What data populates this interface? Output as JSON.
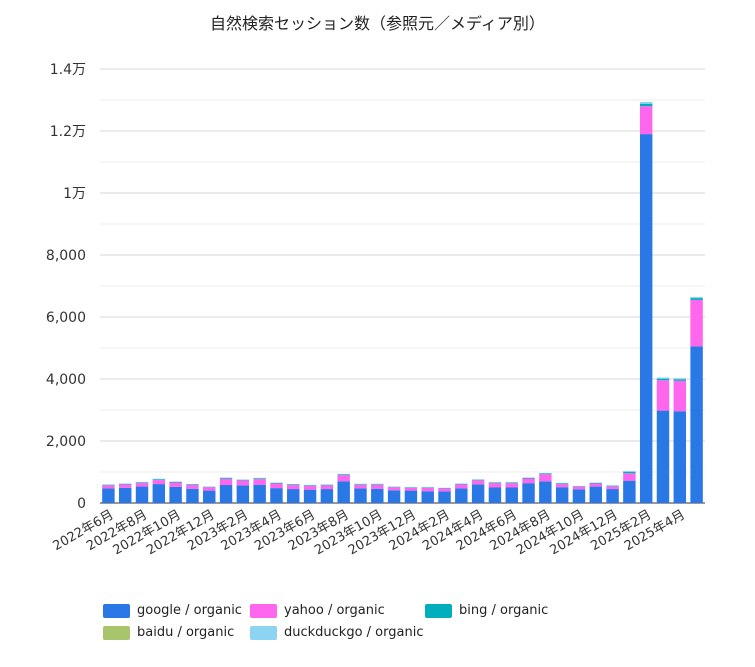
{
  "chart_data": {
    "type": "bar",
    "stacked": true,
    "title": "自然検索セッション数（参照元／メディア別）",
    "xlabel": "",
    "ylabel": "",
    "ylim": [
      0,
      14000
    ],
    "yticks": [
      {
        "value": 0,
        "label": "0"
      },
      {
        "value": 2000,
        "label": "2,000"
      },
      {
        "value": 4000,
        "label": "4,000"
      },
      {
        "value": 6000,
        "label": "6,000"
      },
      {
        "value": 8000,
        "label": "8,000"
      },
      {
        "value": 10000,
        "label": "1万"
      },
      {
        "value": 12000,
        "label": "1.2万"
      },
      {
        "value": 14000,
        "label": "1.4万"
      }
    ],
    "grid": true,
    "legend_position": "bottom-left",
    "categories": [
      "2022年6月",
      "2022年7月",
      "2022年8月",
      "2022年9月",
      "2022年10月",
      "2022年11月",
      "2022年12月",
      "2023年1月",
      "2023年2月",
      "2023年3月",
      "2023年4月",
      "2023年5月",
      "2023年6月",
      "2023年7月",
      "2023年8月",
      "2023年9月",
      "2023年10月",
      "2023年11月",
      "2023年12月",
      "2024年1月",
      "2024年2月",
      "2024年3月",
      "2024年4月",
      "2024年5月",
      "2024年6月",
      "2024年7月",
      "2024年8月",
      "2024年9月",
      "2024年10月",
      "2024年11月",
      "2024年12月",
      "2025年1月",
      "2025年2月",
      "2025年3月",
      "2025年4月",
      "2025年5月"
    ],
    "tick_labels": [
      "2022年6月",
      "2022年8月",
      "2022年10月",
      "2022年12月",
      "2023年2月",
      "2023年4月",
      "2023年6月",
      "2023年8月",
      "2023年10月",
      "2023年12月",
      "2024年2月",
      "2024年4月",
      "2024年6月",
      "2024年8月",
      "2024年10月",
      "2024年12月",
      "2025年2月",
      "2025年4月"
    ],
    "series": [
      {
        "name": "google / organic",
        "color": "#2a77e6",
        "values": [
          470,
          490,
          530,
          610,
          520,
          460,
          400,
          580,
          570,
          590,
          480,
          450,
          430,
          450,
          700,
          470,
          460,
          410,
          400,
          380,
          370,
          470,
          600,
          500,
          500,
          640,
          700,
          510,
          440,
          530,
          450,
          720,
          11900,
          2980,
          2960,
          5050
        ]
      },
      {
        "name": "yahoo / organic",
        "color": "#ff66ee",
        "values": [
          100,
          110,
          120,
          130,
          140,
          120,
          110,
          200,
          160,
          180,
          150,
          130,
          120,
          120,
          200,
          120,
          130,
          100,
          90,
          110,
          100,
          130,
          130,
          140,
          140,
          150,
          230,
          100,
          90,
          100,
          90,
          240,
          900,
          980,
          980,
          1500
        ]
      },
      {
        "name": "bing / organic",
        "color": "#00aebd",
        "values": [
          20,
          20,
          20,
          25,
          20,
          20,
          15,
          25,
          20,
          25,
          20,
          20,
          15,
          20,
          25,
          20,
          20,
          15,
          15,
          15,
          15,
          20,
          20,
          20,
          20,
          20,
          25,
          20,
          15,
          20,
          20,
          40,
          80,
          50,
          50,
          60
        ]
      },
      {
        "name": "baidu / organic",
        "color": "#a9c56b",
        "values": [
          0,
          0,
          0,
          0,
          0,
          0,
          0,
          0,
          0,
          0,
          0,
          0,
          0,
          0,
          0,
          0,
          0,
          0,
          0,
          0,
          0,
          0,
          0,
          0,
          0,
          0,
          0,
          0,
          0,
          0,
          0,
          0,
          0,
          0,
          0,
          0
        ]
      },
      {
        "name": "duckduckgo / organic",
        "color": "#8dd3f2",
        "values": [
          15,
          15,
          15,
          20,
          15,
          15,
          10,
          20,
          15,
          20,
          15,
          15,
          15,
          15,
          20,
          15,
          15,
          10,
          10,
          10,
          10,
          15,
          20,
          15,
          15,
          20,
          20,
          15,
          10,
          15,
          15,
          40,
          60,
          40,
          40,
          40
        ]
      }
    ]
  }
}
